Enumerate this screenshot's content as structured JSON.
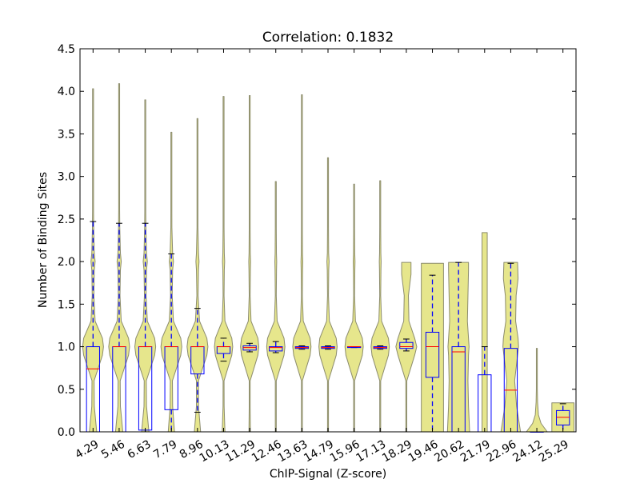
{
  "chart_data": {
    "type": "violin",
    "title": "Correlation: 0.1832",
    "xlabel": "ChIP-Signal (Z-score)",
    "ylabel": "Number of Binding Sites",
    "ylim": [
      0,
      4.5
    ],
    "yticks": [
      "0.0",
      "0.5",
      "1.0",
      "1.5",
      "2.0",
      "2.5",
      "3.0",
      "3.5",
      "4.0",
      "4.5"
    ],
    "categories": [
      "4.29",
      "5.46",
      "6.63",
      "7.79",
      "8.96",
      "10.13",
      "11.29",
      "12.46",
      "13.63",
      "14.79",
      "15.96",
      "17.13",
      "18.29",
      "19.46",
      "20.62",
      "21.79",
      "22.96",
      "24.12",
      "25.29"
    ],
    "violins": [
      {
        "max": 4.03,
        "width": 0.8,
        "profile": [
          [
            0,
            0.35
          ],
          [
            0.3,
            0.12
          ],
          [
            0.6,
            0.1
          ],
          [
            0.9,
            0.9
          ],
          [
            1.0,
            1.0
          ],
          [
            1.1,
            0.9
          ],
          [
            1.3,
            0.2
          ],
          [
            1.6,
            0.08
          ],
          [
            1.9,
            0.12
          ],
          [
            2.0,
            0.2
          ],
          [
            2.1,
            0.12
          ],
          [
            2.4,
            0.06
          ],
          [
            2.6,
            0.02
          ],
          [
            3.0,
            0.015
          ],
          [
            4.03,
            0.01
          ]
        ]
      },
      {
        "max": 4.09,
        "width": 0.8,
        "profile": [
          [
            0,
            0.35
          ],
          [
            0.3,
            0.12
          ],
          [
            0.6,
            0.1
          ],
          [
            0.9,
            0.9
          ],
          [
            1.0,
            1.0
          ],
          [
            1.1,
            0.9
          ],
          [
            1.3,
            0.2
          ],
          [
            1.6,
            0.08
          ],
          [
            1.9,
            0.12
          ],
          [
            2.0,
            0.2
          ],
          [
            2.1,
            0.12
          ],
          [
            2.4,
            0.06
          ],
          [
            2.6,
            0.02
          ],
          [
            3.0,
            0.015
          ],
          [
            4.09,
            0.01
          ]
        ]
      },
      {
        "max": 3.9,
        "width": 0.8,
        "profile": [
          [
            0,
            0.35
          ],
          [
            0.3,
            0.12
          ],
          [
            0.6,
            0.1
          ],
          [
            0.9,
            0.9
          ],
          [
            1.0,
            1.0
          ],
          [
            1.1,
            0.9
          ],
          [
            1.3,
            0.2
          ],
          [
            1.6,
            0.08
          ],
          [
            1.9,
            0.12
          ],
          [
            2.0,
            0.2
          ],
          [
            2.1,
            0.12
          ],
          [
            2.4,
            0.06
          ],
          [
            2.6,
            0.02
          ],
          [
            3.0,
            0.015
          ],
          [
            3.9,
            0.01
          ]
        ]
      },
      {
        "max": 3.52,
        "width": 0.8,
        "profile": [
          [
            0,
            0.3
          ],
          [
            0.3,
            0.12
          ],
          [
            0.6,
            0.1
          ],
          [
            0.9,
            0.9
          ],
          [
            1.0,
            1.0
          ],
          [
            1.1,
            0.9
          ],
          [
            1.3,
            0.2
          ],
          [
            1.6,
            0.08
          ],
          [
            1.9,
            0.12
          ],
          [
            2.0,
            0.2
          ],
          [
            2.1,
            0.12
          ],
          [
            2.4,
            0.05
          ],
          [
            2.6,
            0.02
          ],
          [
            3.0,
            0.015
          ],
          [
            3.52,
            0.01
          ]
        ]
      },
      {
        "max": 3.68,
        "width": 0.8,
        "profile": [
          [
            0,
            0.3
          ],
          [
            0.3,
            0.1
          ],
          [
            0.6,
            0.1
          ],
          [
            0.9,
            0.9
          ],
          [
            1.0,
            1.0
          ],
          [
            1.1,
            0.9
          ],
          [
            1.3,
            0.2
          ],
          [
            1.6,
            0.06
          ],
          [
            1.9,
            0.1
          ],
          [
            2.0,
            0.15
          ],
          [
            2.1,
            0.1
          ],
          [
            2.4,
            0.04
          ],
          [
            2.6,
            0.02
          ],
          [
            3.0,
            0.015
          ],
          [
            3.68,
            0.01
          ]
        ]
      },
      {
        "max": 3.94,
        "width": 0.7,
        "profile": [
          [
            0,
            0.15
          ],
          [
            0.3,
            0.06
          ],
          [
            0.6,
            0.05
          ],
          [
            0.9,
            0.9
          ],
          [
            1.0,
            1.0
          ],
          [
            1.1,
            0.9
          ],
          [
            1.3,
            0.15
          ],
          [
            1.6,
            0.05
          ],
          [
            1.9,
            0.08
          ],
          [
            2.0,
            0.12
          ],
          [
            2.1,
            0.08
          ],
          [
            2.4,
            0.03
          ],
          [
            2.6,
            0.02
          ],
          [
            3.0,
            0.015
          ],
          [
            3.94,
            0.01
          ]
        ]
      },
      {
        "max": 3.95,
        "width": 0.7,
        "profile": [
          [
            0,
            0.08
          ],
          [
            0.3,
            0.04
          ],
          [
            0.6,
            0.04
          ],
          [
            0.9,
            0.9
          ],
          [
            1.0,
            1.0
          ],
          [
            1.1,
            0.9
          ],
          [
            1.3,
            0.15
          ],
          [
            1.6,
            0.05
          ],
          [
            1.9,
            0.08
          ],
          [
            2.0,
            0.1
          ],
          [
            2.1,
            0.07
          ],
          [
            2.4,
            0.03
          ],
          [
            2.6,
            0.02
          ],
          [
            3.0,
            0.015
          ],
          [
            3.95,
            0.01
          ]
        ]
      },
      {
        "max": 2.94,
        "width": 0.7,
        "profile": [
          [
            0,
            0.05
          ],
          [
            0.3,
            0.03
          ],
          [
            0.6,
            0.04
          ],
          [
            0.9,
            0.9
          ],
          [
            1.0,
            1.0
          ],
          [
            1.1,
            0.9
          ],
          [
            1.3,
            0.15
          ],
          [
            1.6,
            0.05
          ],
          [
            1.9,
            0.08
          ],
          [
            2.0,
            0.1
          ],
          [
            2.1,
            0.07
          ],
          [
            2.4,
            0.03
          ],
          [
            2.6,
            0.02
          ],
          [
            2.94,
            0.01
          ]
        ]
      },
      {
        "max": 3.96,
        "width": 0.7,
        "profile": [
          [
            0,
            0.05
          ],
          [
            0.3,
            0.03
          ],
          [
            0.6,
            0.04
          ],
          [
            0.9,
            0.9
          ],
          [
            1.0,
            1.0
          ],
          [
            1.1,
            0.9
          ],
          [
            1.3,
            0.15
          ],
          [
            1.6,
            0.05
          ],
          [
            1.9,
            0.08
          ],
          [
            2.0,
            0.1
          ],
          [
            2.1,
            0.07
          ],
          [
            2.4,
            0.03
          ],
          [
            2.6,
            0.02
          ],
          [
            3.0,
            0.015
          ],
          [
            3.96,
            0.01
          ]
        ]
      },
      {
        "max": 3.22,
        "width": 0.7,
        "profile": [
          [
            0,
            0.04
          ],
          [
            0.3,
            0.03
          ],
          [
            0.6,
            0.04
          ],
          [
            0.9,
            0.9
          ],
          [
            1.0,
            1.0
          ],
          [
            1.1,
            0.9
          ],
          [
            1.3,
            0.15
          ],
          [
            1.6,
            0.05
          ],
          [
            1.9,
            0.08
          ],
          [
            2.0,
            0.12
          ],
          [
            2.1,
            0.07
          ],
          [
            2.4,
            0.03
          ],
          [
            2.6,
            0.02
          ],
          [
            3.0,
            0.015
          ],
          [
            3.22,
            0.01
          ]
        ]
      },
      {
        "max": 2.91,
        "width": 0.7,
        "profile": [
          [
            0,
            0.04
          ],
          [
            0.3,
            0.03
          ],
          [
            0.6,
            0.04
          ],
          [
            0.9,
            0.9
          ],
          [
            1.0,
            1.0
          ],
          [
            1.1,
            0.9
          ],
          [
            1.3,
            0.15
          ],
          [
            1.6,
            0.05
          ],
          [
            1.9,
            0.08
          ],
          [
            2.0,
            0.1
          ],
          [
            2.1,
            0.07
          ],
          [
            2.4,
            0.03
          ],
          [
            2.6,
            0.02
          ],
          [
            2.91,
            0.01
          ]
        ]
      },
      {
        "max": 2.95,
        "width": 0.7,
        "profile": [
          [
            0,
            0.04
          ],
          [
            0.3,
            0.03
          ],
          [
            0.6,
            0.04
          ],
          [
            0.9,
            0.9
          ],
          [
            1.0,
            1.0
          ],
          [
            1.1,
            0.9
          ],
          [
            1.3,
            0.15
          ],
          [
            1.6,
            0.05
          ],
          [
            1.9,
            0.08
          ],
          [
            2.0,
            0.1
          ],
          [
            2.1,
            0.07
          ],
          [
            2.4,
            0.03
          ],
          [
            2.6,
            0.02
          ],
          [
            2.95,
            0.01
          ]
        ]
      },
      {
        "max": 1.99,
        "width": 0.8,
        "profile": [
          [
            0,
            0.03
          ],
          [
            0.3,
            0.03
          ],
          [
            0.6,
            0.05
          ],
          [
            0.9,
            0.8
          ],
          [
            1.0,
            1.0
          ],
          [
            1.1,
            0.8
          ],
          [
            1.3,
            0.25
          ],
          [
            1.6,
            0.2
          ],
          [
            1.85,
            0.45
          ],
          [
            1.99,
            0.45
          ]
        ]
      },
      {
        "max": 1.98,
        "width": 0.85,
        "profile": [
          [
            0,
            1.0
          ],
          [
            0.3,
            1.0
          ],
          [
            0.6,
            1.0
          ],
          [
            0.9,
            1.0
          ],
          [
            1.0,
            1.0
          ],
          [
            1.1,
            1.0
          ],
          [
            1.3,
            1.0
          ],
          [
            1.6,
            1.0
          ],
          [
            1.9,
            1.0
          ],
          [
            1.98,
            1.0
          ]
        ]
      },
      {
        "max": 1.99,
        "width": 0.85,
        "profile": [
          [
            0,
            1.0
          ],
          [
            0.3,
            0.9
          ],
          [
            0.6,
            0.85
          ],
          [
            0.9,
            0.9
          ],
          [
            1.0,
            0.95
          ],
          [
            1.1,
            0.9
          ],
          [
            1.3,
            0.8
          ],
          [
            1.6,
            0.85
          ],
          [
            1.9,
            0.9
          ],
          [
            1.99,
            0.9
          ]
        ]
      },
      {
        "max": 2.34,
        "width": 0.2,
        "profile": [
          [
            0,
            1.0
          ],
          [
            0.3,
            1.0
          ],
          [
            0.6,
            1.0
          ],
          [
            0.9,
            1.0
          ],
          [
            1.0,
            1.0
          ],
          [
            1.1,
            1.0
          ],
          [
            1.3,
            1.0
          ],
          [
            1.6,
            1.0
          ],
          [
            1.9,
            1.0
          ],
          [
            2.2,
            1.0
          ],
          [
            2.34,
            1.0
          ]
        ]
      },
      {
        "max": 1.99,
        "width": 0.75,
        "profile": [
          [
            0,
            1.0
          ],
          [
            0.3,
            0.6
          ],
          [
            0.6,
            0.4
          ],
          [
            0.9,
            0.7
          ],
          [
            1.0,
            0.8
          ],
          [
            1.1,
            0.75
          ],
          [
            1.3,
            0.5
          ],
          [
            1.6,
            0.55
          ],
          [
            1.8,
            0.75
          ],
          [
            1.99,
            0.7
          ]
        ]
      },
      {
        "max": 0.98,
        "width": 0.8,
        "profile": [
          [
            0,
            1.0
          ],
          [
            0.1,
            0.4
          ],
          [
            0.2,
            0.15
          ],
          [
            0.35,
            0.07
          ],
          [
            0.5,
            0.04
          ],
          [
            0.7,
            0.02
          ],
          [
            0.98,
            0.01
          ]
        ]
      },
      {
        "max": 0.34,
        "width": 0.85,
        "profile": [
          [
            0,
            1.0
          ],
          [
            0.1,
            1.0
          ],
          [
            0.2,
            1.0
          ],
          [
            0.3,
            1.0
          ],
          [
            0.34,
            1.0
          ]
        ]
      }
    ],
    "boxes": [
      {
        "q1": 0.0,
        "median": 0.74,
        "q3": 1.0,
        "whislo": 0.0,
        "whishi": 2.47
      },
      {
        "q1": 0.0,
        "median": 1.0,
        "q3": 1.0,
        "whislo": 0.0,
        "whishi": 2.45
      },
      {
        "q1": 0.02,
        "median": 1.0,
        "q3": 1.0,
        "whislo": 0.0,
        "whishi": 2.45
      },
      {
        "q1": 0.26,
        "median": 1.0,
        "q3": 1.0,
        "whislo": 0.0,
        "whishi": 2.09
      },
      {
        "q1": 0.68,
        "median": 1.0,
        "q3": 1.0,
        "whislo": 0.23,
        "whishi": 1.45
      },
      {
        "q1": 0.92,
        "median": 1.0,
        "q3": 1.0,
        "whislo": 0.83,
        "whishi": 1.1
      },
      {
        "q1": 0.96,
        "median": 0.99,
        "q3": 1.01,
        "whislo": 0.94,
        "whishi": 1.04
      },
      {
        "q1": 0.95,
        "median": 0.99,
        "q3": 1.0,
        "whislo": 0.93,
        "whishi": 1.06
      },
      {
        "q1": 0.98,
        "median": 0.99,
        "q3": 1.0,
        "whislo": 0.97,
        "whishi": 1.01
      },
      {
        "q1": 0.98,
        "median": 0.99,
        "q3": 1.0,
        "whislo": 0.97,
        "whishi": 1.01
      },
      {
        "q1": 0.99,
        "median": 1.0,
        "q3": 1.0,
        "whislo": 0.99,
        "whishi": 1.0
      },
      {
        "q1": 0.98,
        "median": 0.99,
        "q3": 1.0,
        "whislo": 0.97,
        "whishi": 1.01
      },
      {
        "q1": 0.98,
        "median": 1.0,
        "q3": 1.05,
        "whislo": 0.95,
        "whishi": 1.09
      },
      {
        "q1": 0.64,
        "median": 1.0,
        "q3": 1.17,
        "whislo": 0.0,
        "whishi": 1.84
      },
      {
        "q1": 0.0,
        "median": 0.94,
        "q3": 1.0,
        "whislo": 0.0,
        "whishi": 1.99
      },
      {
        "q1": 0.0,
        "median": 0.0,
        "q3": 0.67,
        "whislo": 0.0,
        "whishi": 1.0
      },
      {
        "q1": 0.0,
        "median": 0.49,
        "q3": 0.98,
        "whislo": 0.0,
        "whishi": 1.98
      },
      {
        "q1": 0.0,
        "median": 0.0,
        "q3": 0.0,
        "whislo": 0.0,
        "whishi": 0.0
      },
      {
        "q1": 0.08,
        "median": 0.17,
        "q3": 0.25,
        "whislo": 0.0,
        "whishi": 0.33
      }
    ],
    "colors": {
      "violin_fill": "#e6e68c",
      "violin_edge": "#8c8c6e",
      "box_edge": "#0000ff",
      "median": "#ff0000",
      "whisker": "#0000ff",
      "cap": "#000000",
      "axes": "#000000",
      "text": "#000000"
    },
    "grid": false,
    "legend": "none"
  }
}
